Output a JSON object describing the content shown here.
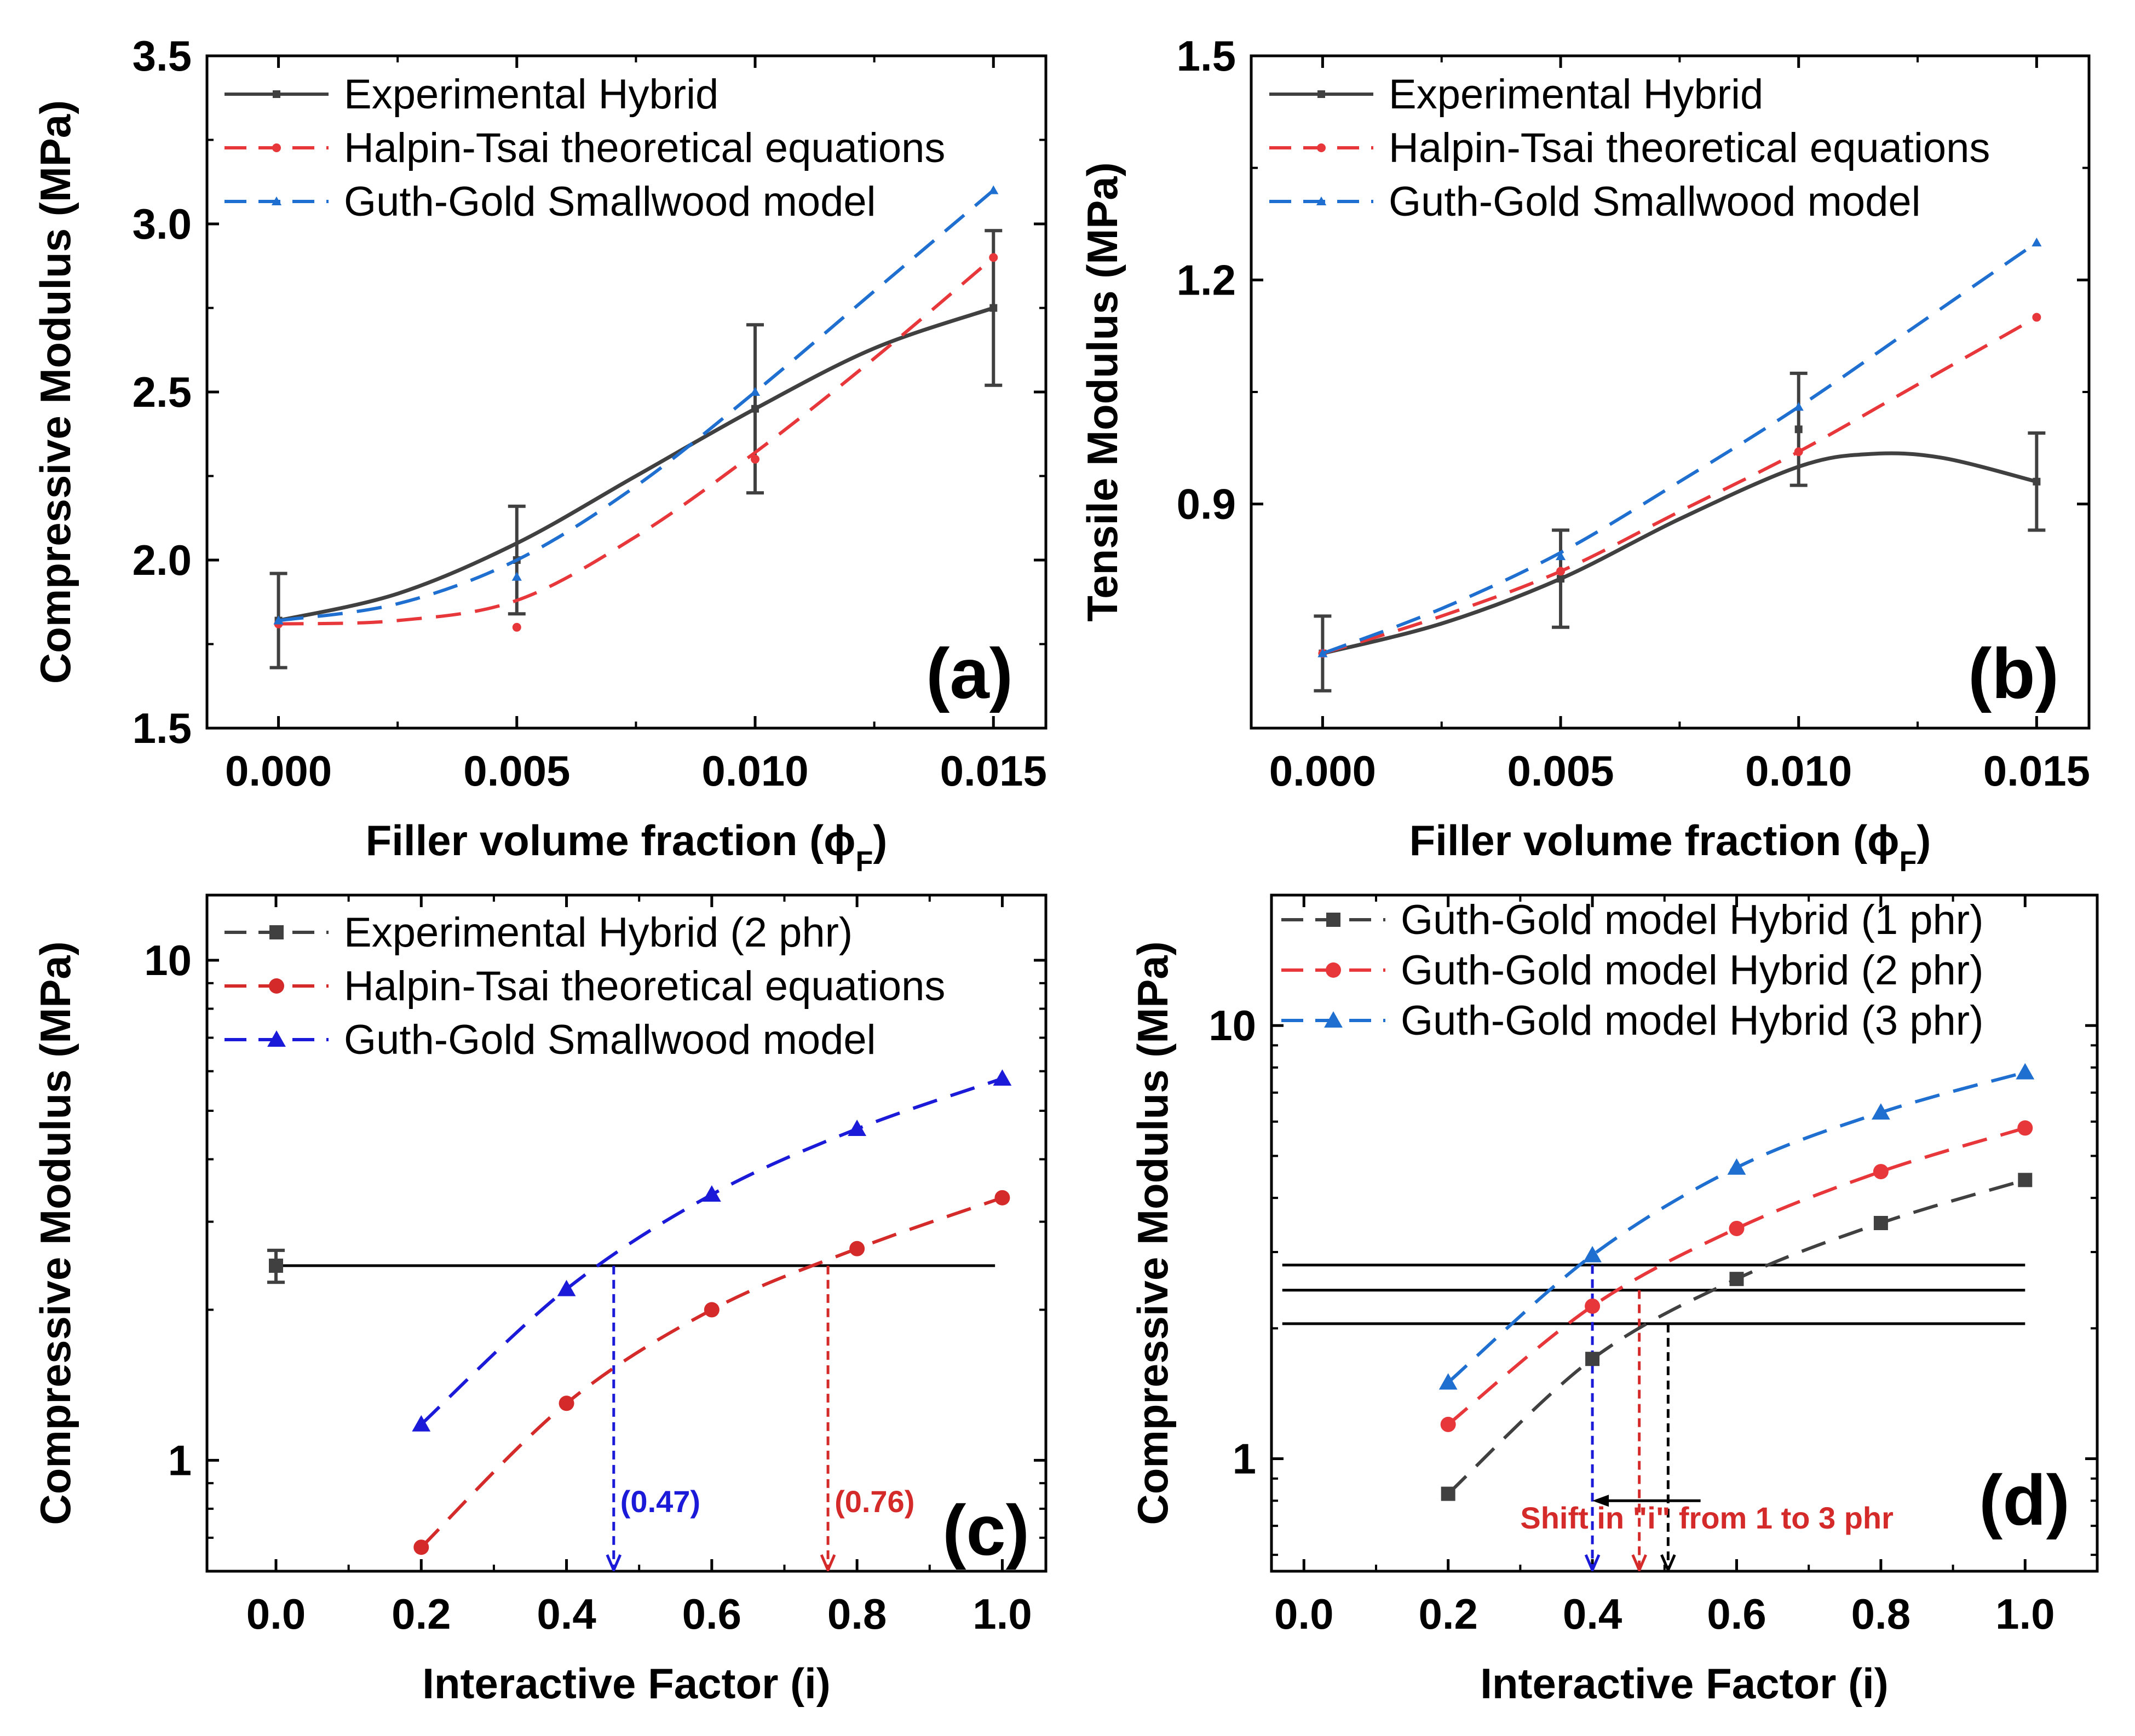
{
  "chart_data": [
    {
      "panel": "(a)",
      "type": "line",
      "xlabel": "Filler volume fraction (ϕ_F)",
      "xlabel_main": "Filler volume fraction (ϕ",
      "xlabel_sub": "F",
      "xlabel_close": ")",
      "ylabel": "Compressive Modulus (MPa)",
      "xlim": [
        -0.0015,
        0.0161
      ],
      "ylim": [
        1.5,
        3.5
      ],
      "xticks": [
        0.0,
        0.005,
        0.01,
        0.015
      ],
      "xtick_labels": [
        "0.000",
        "0.005",
        "0.010",
        "0.015"
      ],
      "yticks": [
        1.5,
        2.0,
        2.5,
        3.0,
        3.5
      ],
      "ytick_labels": [
        "1.5",
        "2.0",
        "2.5",
        "3.0",
        "3.5"
      ],
      "legend_position": "top-left",
      "grid": false,
      "series": [
        {
          "name": "Experimental Hybrid",
          "color": "#404040",
          "marker": "square",
          "dash": "solid",
          "smooth": true,
          "x": [
            0.0,
            0.005,
            0.01,
            0.015
          ],
          "y": [
            1.82,
            2.0,
            2.45,
            2.75
          ],
          "curve": [
            [
              0.0,
              1.82
            ],
            [
              0.0025,
              1.9
            ],
            [
              0.005,
              2.05
            ],
            [
              0.0075,
              2.25
            ],
            [
              0.01,
              2.45
            ],
            [
              0.0125,
              2.63
            ],
            [
              0.015,
              2.75
            ]
          ],
          "error": [
            0.14,
            0.16,
            0.25,
            0.23
          ]
        },
        {
          "name": "Halpin-Tsai theoretical equations",
          "color": "#e8373a",
          "marker": "circle",
          "dash": "dashed",
          "smooth": true,
          "x": [
            0.0,
            0.005,
            0.01,
            0.015
          ],
          "y": [
            1.81,
            1.8,
            2.3,
            2.9
          ],
          "curve": [
            [
              0.0,
              1.81
            ],
            [
              0.0025,
              1.82
            ],
            [
              0.005,
              1.88
            ],
            [
              0.0075,
              2.07
            ],
            [
              0.01,
              2.32
            ],
            [
              0.0125,
              2.6
            ],
            [
              0.015,
              2.9
            ]
          ]
        },
        {
          "name": "Guth-Gold Smallwood model",
          "color": "#1f6fd1",
          "marker": "triangle",
          "dash": "dashed",
          "smooth": true,
          "x": [
            0.0,
            0.005,
            0.01,
            0.015
          ],
          "y": [
            1.82,
            1.95,
            2.5,
            3.1
          ],
          "curve": [
            [
              0.0,
              1.82
            ],
            [
              0.0025,
              1.87
            ],
            [
              0.005,
              2.0
            ],
            [
              0.0075,
              2.22
            ],
            [
              0.01,
              2.5
            ],
            [
              0.0125,
              2.8
            ],
            [
              0.015,
              3.1
            ]
          ]
        }
      ]
    },
    {
      "panel": "(b)",
      "type": "line",
      "xlabel": "Filler volume fraction (ϕ_F)",
      "xlabel_main": "Filler volume fraction (ϕ",
      "xlabel_sub": "F",
      "xlabel_close": ")",
      "ylabel": "Tensile Modulus (MPa)",
      "xlim": [
        -0.0015,
        0.0161
      ],
      "ylim": [
        0.6,
        1.5
      ],
      "xticks": [
        0.0,
        0.005,
        0.01,
        0.015
      ],
      "xtick_labels": [
        "0.000",
        "0.005",
        "0.010",
        "0.015"
      ],
      "yticks": [
        0.9,
        1.2,
        1.5
      ],
      "ytick_labels": [
        "0.9",
        "1.2",
        "1.5"
      ],
      "legend_position": "top-left",
      "grid": false,
      "series": [
        {
          "name": "Experimental Hybrid",
          "color": "#404040",
          "marker": "square",
          "dash": "solid",
          "smooth": true,
          "x": [
            0.0,
            0.005,
            0.01,
            0.015
          ],
          "y": [
            0.7,
            0.8,
            1.0,
            0.93
          ],
          "curve": [
            [
              0.0,
              0.7
            ],
            [
              0.0025,
              0.74
            ],
            [
              0.005,
              0.8
            ],
            [
              0.0075,
              0.88
            ],
            [
              0.01,
              0.95
            ],
            [
              0.0115,
              0.967
            ],
            [
              0.013,
              0.962
            ],
            [
              0.015,
              0.93
            ]
          ],
          "error": [
            0.05,
            0.065,
            0.075,
            0.065
          ]
        },
        {
          "name": "Halpin-Tsai theoretical equations",
          "color": "#e8373a",
          "marker": "circle",
          "dash": "dashed",
          "smooth": true,
          "x": [
            0.0,
            0.005,
            0.01,
            0.015
          ],
          "y": [
            0.7,
            0.81,
            0.97,
            1.15
          ],
          "curve": [
            [
              0.0,
              0.7
            ],
            [
              0.0025,
              0.75
            ],
            [
              0.005,
              0.81
            ],
            [
              0.0075,
              0.89
            ],
            [
              0.01,
              0.97
            ],
            [
              0.0125,
              1.06
            ],
            [
              0.015,
              1.15
            ]
          ]
        },
        {
          "name": "Guth-Gold Smallwood model",
          "color": "#1f6fd1",
          "marker": "triangle",
          "dash": "dashed",
          "smooth": true,
          "x": [
            0.0,
            0.005,
            0.01,
            0.015
          ],
          "y": [
            0.7,
            0.83,
            1.03,
            1.25
          ],
          "curve": [
            [
              0.0,
              0.7
            ],
            [
              0.0025,
              0.76
            ],
            [
              0.005,
              0.835
            ],
            [
              0.0075,
              0.93
            ],
            [
              0.01,
              1.03
            ],
            [
              0.0125,
              1.14
            ],
            [
              0.015,
              1.25
            ]
          ]
        }
      ]
    },
    {
      "panel": "(c)",
      "type": "line",
      "xlabel": "Interactive Factor (i)",
      "ylabel": "Compressive Modulus (MPa)",
      "yscale": "log",
      "xlim": [
        -0.095,
        1.06
      ],
      "ylim": [
        0.6,
        13.5
      ],
      "xticks": [
        0.0,
        0.2,
        0.4,
        0.6,
        0.8,
        1.0
      ],
      "xtick_labels": [
        "0.0",
        "0.2",
        "0.4",
        "0.6",
        "0.8",
        "1.0"
      ],
      "yticks": [
        1,
        10
      ],
      "ytick_labels": [
        "1",
        "10"
      ],
      "legend_position": "top-left",
      "grid": false,
      "series": [
        {
          "name": "Experimental Hybrid (2 phr)",
          "color": "#404040",
          "marker": "square",
          "dash": "dashed",
          "smooth": false,
          "x": [
            0.0
          ],
          "y": [
            2.45
          ],
          "error": [
            0.18
          ]
        },
        {
          "name": "Halpin-Tsai theoretical equations",
          "color": "#d42a2a",
          "marker": "circle",
          "dash": "dashed",
          "smooth": true,
          "x": [
            0.2,
            0.4,
            0.6,
            0.8,
            1.0
          ],
          "y": [
            0.67,
            1.3,
            2.0,
            2.65,
            3.35
          ]
        },
        {
          "name": "Guth-Gold Smallwood model",
          "color": "#1a1ad8",
          "marker": "triangle",
          "dash": "dashed",
          "smooth": true,
          "x": [
            0.2,
            0.4,
            0.6,
            0.8,
            1.0
          ],
          "y": [
            1.18,
            2.2,
            3.4,
            4.6,
            5.8
          ]
        }
      ],
      "reference_lines": [
        {
          "type": "hline",
          "y": 2.45,
          "x_from": 0.0,
          "x_to": 0.99,
          "color": "#000000"
        },
        {
          "type": "vline-arrow",
          "x": 0.465,
          "y_from": 2.45,
          "color": "#1a1ad8",
          "label": "(0.47)"
        },
        {
          "type": "vline-arrow",
          "x": 0.76,
          "y_from": 2.45,
          "color": "#d42a2a",
          "label": "(0.76)"
        }
      ]
    },
    {
      "panel": "(d)",
      "type": "line",
      "xlabel": "Interactive Factor (i)",
      "ylabel": "Compressive Modulus (MPa)",
      "yscale": "log",
      "xlim": [
        -0.045,
        1.1
      ],
      "ylim": [
        0.55,
        20
      ],
      "xticks": [
        0.0,
        0.2,
        0.4,
        0.6,
        0.8,
        1.0
      ],
      "xtick_labels": [
        "0.0",
        "0.2",
        "0.4",
        "0.6",
        "0.8",
        "1.0"
      ],
      "yticks": [
        1,
        10
      ],
      "ytick_labels": [
        "1",
        "10"
      ],
      "legend_position": "top-left",
      "grid": false,
      "series": [
        {
          "name": "Guth-Gold model Hybrid (1 phr)",
          "color": "#404040",
          "marker": "square",
          "dash": "dashed",
          "smooth": true,
          "x": [
            0.2,
            0.4,
            0.6,
            0.8,
            1.0
          ],
          "y": [
            0.83,
            1.7,
            2.6,
            3.5,
            4.4
          ]
        },
        {
          "name": "Guth-Gold  model Hybrid (2 phr)",
          "color": "#e8373a",
          "marker": "circle",
          "dash": "dashed",
          "smooth": true,
          "x": [
            0.2,
            0.4,
            0.6,
            0.8,
            1.0
          ],
          "y": [
            1.2,
            2.25,
            3.4,
            4.6,
            5.8
          ]
        },
        {
          "name": "Guth-Gold  model Hybrid (3 phr)",
          "color": "#1f6fd1",
          "marker": "triangle",
          "dash": "dashed",
          "smooth": true,
          "x": [
            0.2,
            0.4,
            0.6,
            0.8,
            1.0
          ],
          "y": [
            1.5,
            2.95,
            4.7,
            6.3,
            7.8
          ]
        }
      ],
      "reference_lines": [
        {
          "type": "hline",
          "y": 2.8,
          "x_from": -0.03,
          "x_to": 1.0,
          "color": "#000000"
        },
        {
          "type": "hline",
          "y": 2.45,
          "x_from": -0.03,
          "x_to": 1.0,
          "color": "#000000"
        },
        {
          "type": "hline",
          "y": 2.05,
          "x_from": -0.03,
          "x_to": 1.0,
          "color": "#000000"
        },
        {
          "type": "vline-arrow",
          "x": 0.4,
          "y_from": 2.8,
          "color": "#1a1ad8"
        },
        {
          "type": "vline-arrow",
          "x": 0.465,
          "y_from": 2.45,
          "color": "#d42a2a"
        },
        {
          "type": "vline-arrow",
          "x": 0.505,
          "y_from": 2.05,
          "color": "#000000"
        },
        {
          "type": "harrow",
          "x_from": 0.55,
          "x_to": 0.4,
          "y": 0.8,
          "color": "#000000"
        }
      ],
      "annotation": {
        "text": "Shift in \"i\" from 1 to 3 phr",
        "color": "#d42a2a"
      }
    }
  ]
}
